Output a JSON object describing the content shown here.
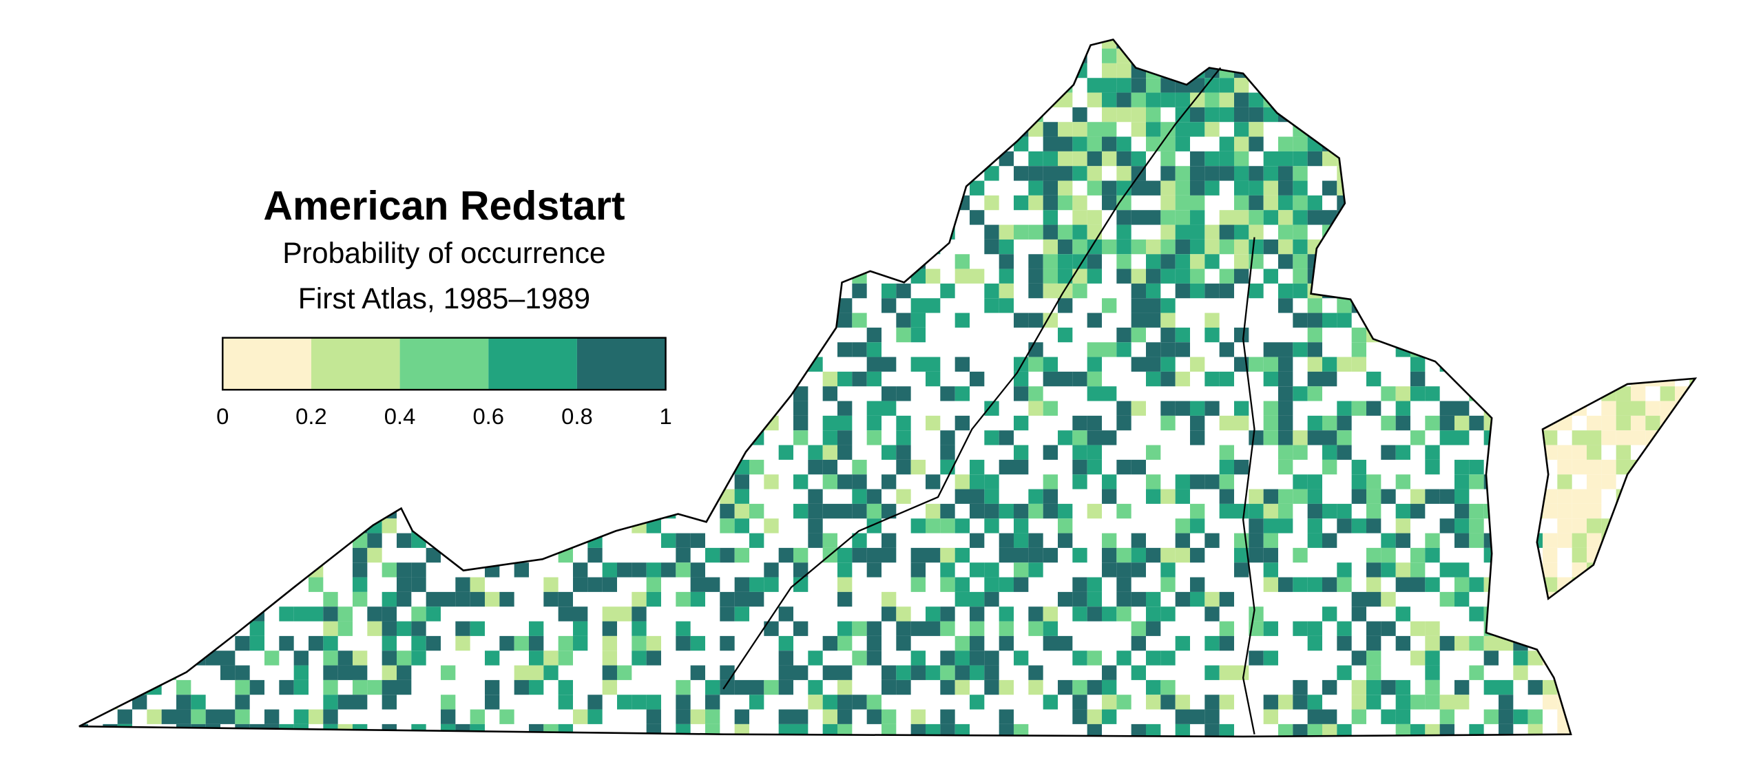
{
  "title": "American Redstart",
  "subtitle": "Probability of occurrence",
  "period": "First Atlas, 1985–1989",
  "legend": {
    "ticks": [
      0,
      0.2,
      0.4,
      0.6,
      0.8,
      1
    ],
    "colors": [
      "#fdf2cc",
      "#c3e795",
      "#6fd48c",
      "#22a47f",
      "#236a6b"
    ]
  }
}
